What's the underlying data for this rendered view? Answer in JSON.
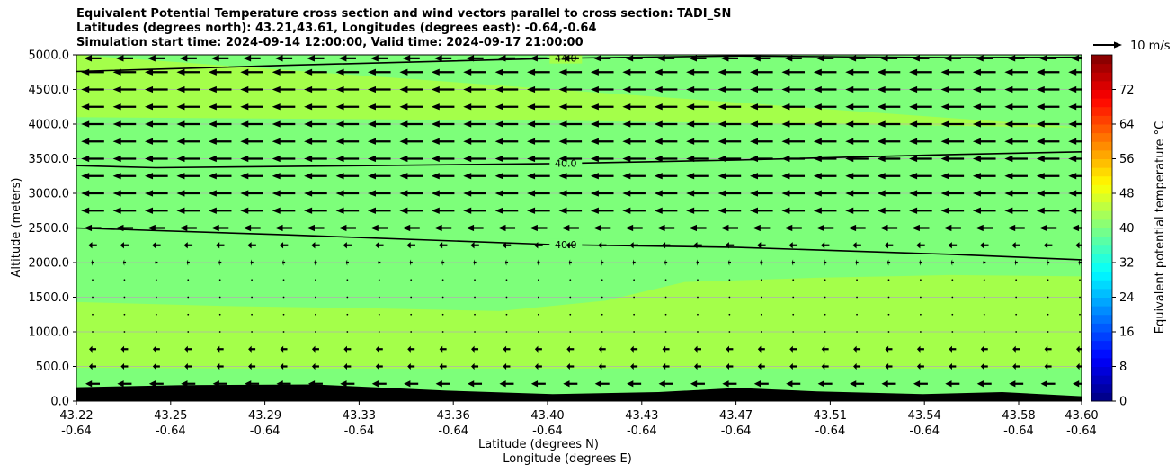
{
  "chart_data": {
    "type": "heatmap",
    "title_lines": [
      "Equivalent Potential Temperature cross section and wind vectors parallel to cross section: TADI_SN",
      "Latitudes (degrees north): 43.21,43.61, Longitudes (degrees east): -0.64,-0.64",
      "Simulation start time: 2024-09-14 12:00:00, Valid time: 2024-09-17 21:00:00"
    ],
    "ylabel": "Altitude (meters)",
    "xlabel_lines": [
      "Latitude (degrees N)",
      "Longitude (degrees E)"
    ],
    "ylim": [
      0,
      5000
    ],
    "y_ticks": [
      "0.0",
      "500.0",
      "1000.0",
      "1500.0",
      "2000.0",
      "2500.0",
      "3000.0",
      "3500.0",
      "4000.0",
      "4500.0",
      "5000.0"
    ],
    "x_ticks": [
      {
        "lat": "43.22",
        "lon": "-0.64"
      },
      {
        "lat": "43.25",
        "lon": "-0.64"
      },
      {
        "lat": "43.29",
        "lon": "-0.64"
      },
      {
        "lat": "43.33",
        "lon": "-0.64"
      },
      {
        "lat": "43.36",
        "lon": "-0.64"
      },
      {
        "lat": "43.40",
        "lon": "-0.64"
      },
      {
        "lat": "43.43",
        "lon": "-0.64"
      },
      {
        "lat": "43.47",
        "lon": "-0.64"
      },
      {
        "lat": "43.51",
        "lon": "-0.64"
      },
      {
        "lat": "43.54",
        "lon": "-0.64"
      },
      {
        "lat": "43.58",
        "lon": "-0.64"
      },
      {
        "lat": "43.60",
        "lon": "-0.64"
      }
    ],
    "grid": true,
    "colorbar": {
      "label": "Equivalent potential temperature °C",
      "range": [
        0,
        80
      ],
      "ticks": [
        "0",
        "8",
        "16",
        "24",
        "32",
        "40",
        "48",
        "56",
        "64",
        "72"
      ]
    },
    "filled_regions": [
      {
        "theta_e": 43,
        "color": "#a4ff4a",
        "band": "upper"
      },
      {
        "theta_e": 40,
        "color": "#7dff7a",
        "band": "middle"
      },
      {
        "theta_e": 43,
        "color": "#a4ff4a",
        "band": "lower"
      },
      {
        "theta_e": 40,
        "color": "#7dff7a",
        "band": "surface"
      }
    ],
    "contours": [
      {
        "label": "44.0",
        "level": 44,
        "x": [
          43.22,
          43.3,
          43.4,
          43.47,
          43.55,
          43.6
        ],
        "y": [
          4760,
          4850,
          4950,
          4985,
          4960,
          4965
        ]
      },
      {
        "label": "40.0",
        "level": 40,
        "x": [
          43.22,
          43.25,
          43.33,
          43.4,
          43.47,
          43.55,
          43.6
        ],
        "y": [
          3400,
          3370,
          3400,
          3430,
          3480,
          3560,
          3600
        ]
      },
      {
        "label": "40.0",
        "level": 40,
        "x": [
          43.22,
          43.3,
          43.4,
          43.47,
          43.55,
          43.6
        ],
        "y": [
          2500,
          2400,
          2260,
          2220,
          2120,
          2040
        ]
      }
    ],
    "terrain": {
      "x": [
        43.22,
        43.26,
        43.31,
        43.36,
        43.4,
        43.44,
        43.47,
        43.5,
        43.54,
        43.57,
        43.6
      ],
      "y": [
        200,
        230,
        240,
        150,
        100,
        130,
        190,
        140,
        100,
        130,
        70
      ]
    },
    "wind_levels_m": [
      4950,
      4750,
      4500,
      4250,
      4000,
      3750,
      3500,
      3250,
      3000,
      2750,
      2500,
      2250,
      2000,
      1750,
      1500,
      1250,
      1000,
      750,
      500,
      250
    ],
    "wind_speed_ms": [
      6,
      8,
      8,
      8,
      8,
      8,
      8,
      8,
      8,
      8,
      6,
      3,
      1,
      0.5,
      0.5,
      0.5,
      0.5,
      2.5,
      2.5,
      5
    ],
    "wind_direction": "toward lower latitude",
    "reference_vector": {
      "label": "10 m/s",
      "speed": 10
    }
  }
}
